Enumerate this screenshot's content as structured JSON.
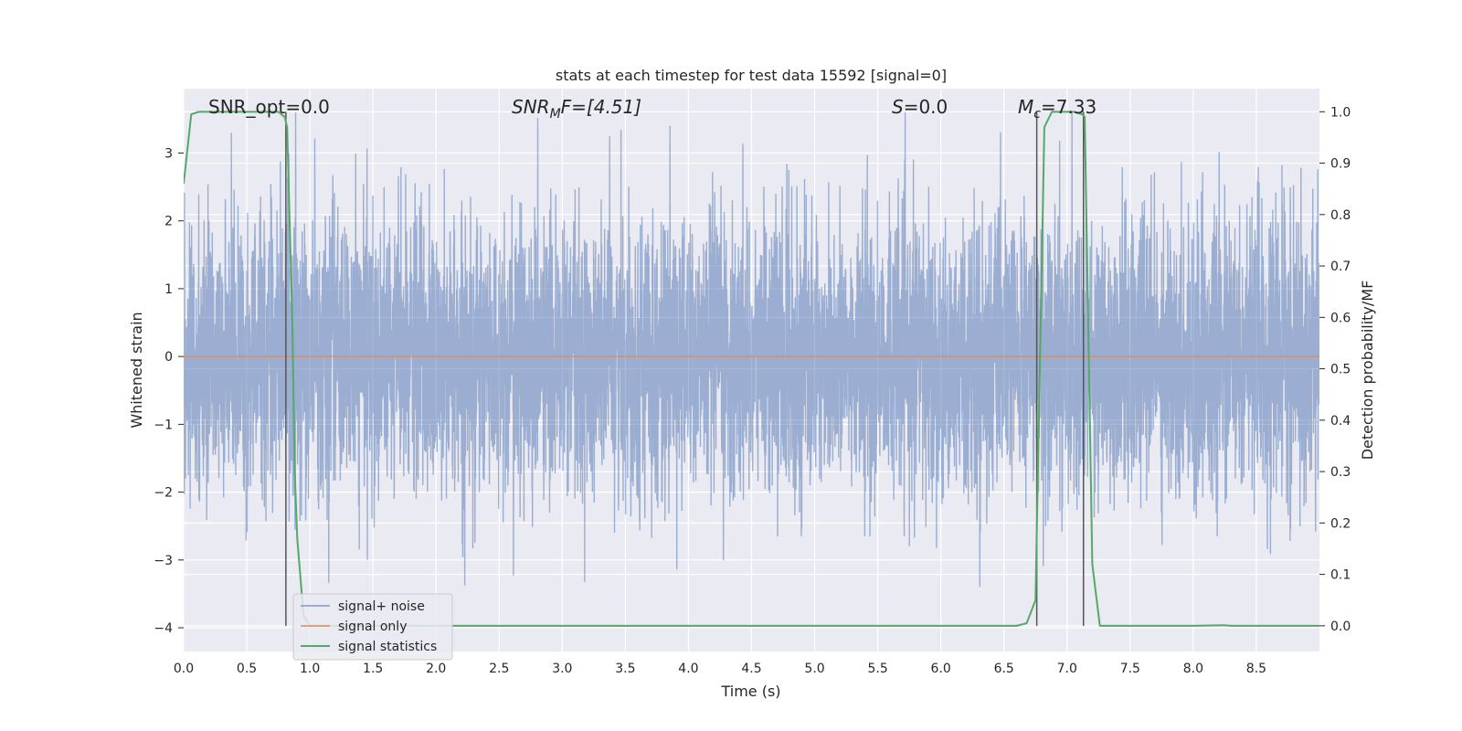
{
  "chart_data": {
    "type": "line",
    "title": "stats at each timestep for test data 15592 [signal=0]",
    "xlabel": "Time (s)",
    "ylabel": "Whitened strain",
    "y2label": "Detection probability/MF",
    "xlim": [
      0.0,
      9.0
    ],
    "ylim": [
      -4.35,
      3.95
    ],
    "y2lim": [
      -0.05,
      1.045
    ],
    "xticks": [
      "0.0",
      "0.5",
      "1.0",
      "1.5",
      "2.0",
      "2.5",
      "3.0",
      "3.5",
      "4.0",
      "4.5",
      "5.0",
      "5.5",
      "6.0",
      "6.5",
      "7.0",
      "7.5",
      "8.0",
      "8.5"
    ],
    "yticks": [
      "3",
      "2",
      "1",
      "0",
      "−1",
      "−2",
      "−3",
      "−4"
    ],
    "y2ticks": [
      "1.0",
      "0.9",
      "0.8",
      "0.7",
      "0.6",
      "0.5",
      "0.4",
      "0.3",
      "0.2",
      "0.1",
      "0.0"
    ],
    "grid": true,
    "legend_position": "lower-left",
    "annotations": {
      "snr_opt": "SNR_opt=0.0",
      "snr_mf_name": "SNR",
      "snr_mf_sub": "M",
      "snr_mf_rest": "F=[4.51]",
      "s_name": "S",
      "s_rest": "=0.0",
      "mc_name": "M",
      "mc_sub": "c",
      "mc_rest": "=7.33"
    },
    "vertical_lines_x": [
      0.81,
      6.76,
      7.13
    ],
    "series": [
      {
        "name": "signal+ noise",
        "color": "#4c72b0",
        "axis": "left",
        "envelope": {
          "noise_sigma": 1.0,
          "min": -4.0,
          "max": 3.6,
          "t_start": 0.0,
          "t_end": 9.0
        }
      },
      {
        "name": "signal only",
        "color": "#dd8452",
        "axis": "left",
        "x": [
          0.0,
          9.0
        ],
        "y": [
          0.0,
          0.0
        ]
      },
      {
        "name": "signal statistics",
        "color": "#55a868",
        "axis": "right",
        "x": [
          0.0,
          0.06,
          0.12,
          0.2,
          0.4,
          0.6,
          0.75,
          0.8,
          0.82,
          0.86,
          0.88,
          0.9,
          0.95,
          1.0,
          1.5,
          2.0,
          3.0,
          4.0,
          5.0,
          6.0,
          6.6,
          6.68,
          6.75,
          6.82,
          6.88,
          6.95,
          7.05,
          7.12,
          7.14,
          7.2,
          7.26,
          7.5,
          8.0,
          8.25,
          8.3,
          9.0
        ],
        "y": [
          0.86,
          0.995,
          1.0,
          1.0,
          1.0,
          1.0,
          1.0,
          0.99,
          0.97,
          0.6,
          0.3,
          0.17,
          0.02,
          0.0,
          0.0,
          0.0,
          0.0,
          0.0,
          0.0,
          0.0,
          0.0,
          0.005,
          0.05,
          0.97,
          1.0,
          1.0,
          1.0,
          0.995,
          0.99,
          0.12,
          0.0,
          0.0,
          0.0,
          0.001,
          0.0,
          0.0
        ]
      }
    ]
  }
}
